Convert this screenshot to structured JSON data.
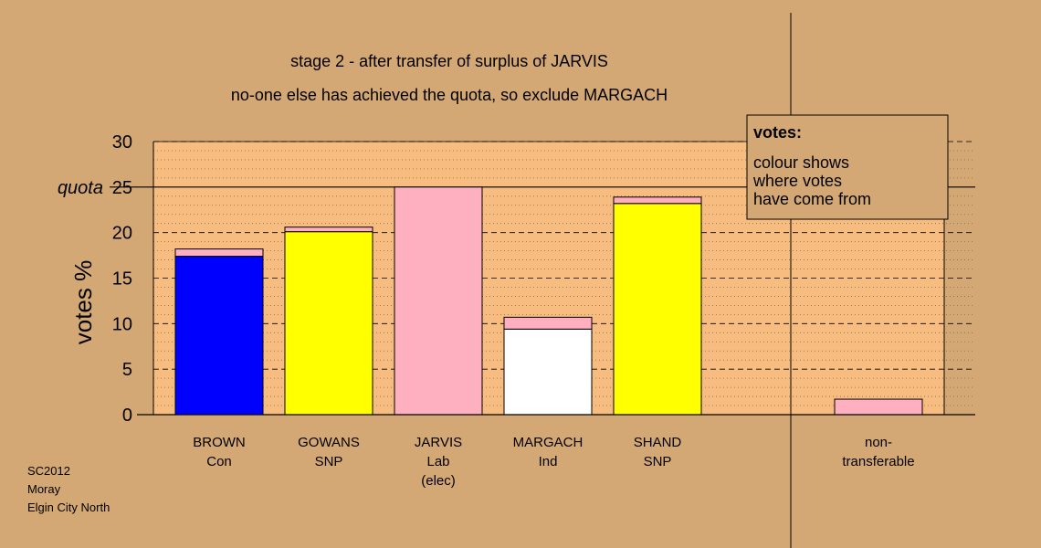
{
  "chart_data": {
    "type": "bar",
    "stacked": true,
    "title": "stage 2 - after transfer of surplus of JARVIS",
    "subtitle": "no-one else has achieved the quota, so exclude MARGACH",
    "ylabel": "votes %",
    "ylim": [
      0,
      30
    ],
    "yticks": [
      "0",
      "5",
      "10",
      "15",
      "20",
      "25",
      "30"
    ],
    "quota": {
      "value": 25,
      "label": "quota"
    },
    "grid": true,
    "legend": {
      "placement": "top-right",
      "title": "votes:",
      "lines": [
        "colour shows",
        "where votes",
        "have come from"
      ]
    },
    "categories": [
      {
        "name": "BROWN",
        "party": "Con",
        "note": ""
      },
      {
        "name": "GOWANS",
        "party": "SNP",
        "note": ""
      },
      {
        "name": "JARVIS",
        "party": "Lab",
        "note": "(elec)"
      },
      {
        "name": "MARGACH",
        "party": "Ind",
        "note": ""
      },
      {
        "name": "SHAND",
        "party": "SNP",
        "note": ""
      },
      {
        "name": "non-",
        "party": "transferable",
        "note": ""
      }
    ],
    "bars": [
      {
        "segments": [
          {
            "value": 17.4,
            "color": "#0000ff"
          },
          {
            "value": 0.8,
            "color": "#ffb0c0"
          }
        ]
      },
      {
        "segments": [
          {
            "value": 20.1,
            "color": "#ffff00"
          },
          {
            "value": 0.5,
            "color": "#ffb0c0"
          }
        ]
      },
      {
        "segments": [
          {
            "value": 25.0,
            "color": "#ffb0c0"
          }
        ]
      },
      {
        "segments": [
          {
            "value": 9.4,
            "color": "#ffffff"
          },
          {
            "value": 1.3,
            "color": "#ffb0c0"
          }
        ]
      },
      {
        "segments": [
          {
            "value": 23.2,
            "color": "#ffff00"
          },
          {
            "value": 0.7,
            "color": "#ffb0c0"
          }
        ]
      },
      {
        "segments": [
          {
            "value": 1.7,
            "color": "#ffb0c0"
          }
        ]
      }
    ],
    "colors": {
      "background": "#d4a874",
      "plot_background": "#f7bc80",
      "legend_background": "#d4a874"
    }
  },
  "credits": [
    "SC2012",
    "Moray",
    "Elgin City North"
  ]
}
